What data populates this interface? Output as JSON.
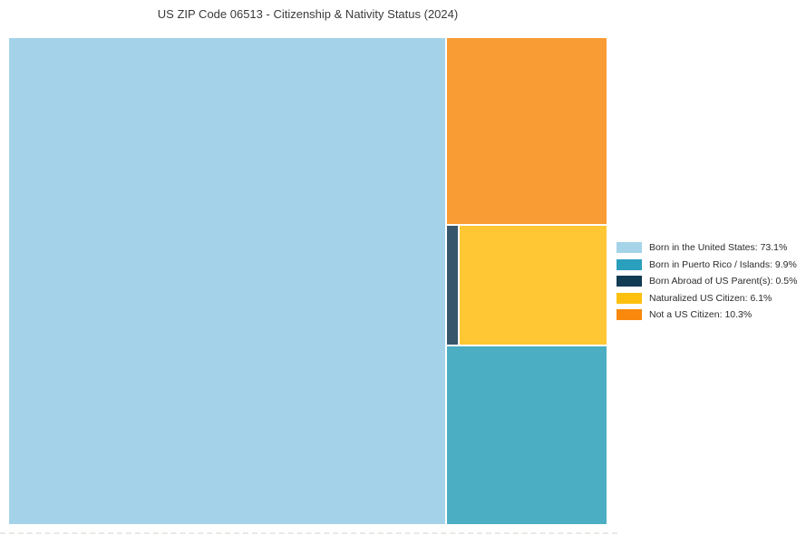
{
  "title": "US ZIP Code 06513 - Citizenship & Nativity Status (2024)",
  "chart_data": {
    "type": "treemap",
    "title": "US ZIP Code 06513 - Citizenship & Nativity Status (2024)",
    "unit": "%",
    "legend_position": "right",
    "items": [
      {
        "key": "born_us",
        "label": "Born in the United States",
        "value": 73.1,
        "fill_color": "#a4d3e9",
        "legend_color": "#a5d4e9"
      },
      {
        "key": "born_pr",
        "label": "Born in Puerto Rico / Islands",
        "value": 9.9,
        "fill_color": "#4baec3",
        "legend_color": "#2b9fbe"
      },
      {
        "key": "born_abroad",
        "label": "Born Abroad of US Parent(s)",
        "value": 0.5,
        "fill_color": "#37566c",
        "legend_color": "#123b54"
      },
      {
        "key": "naturalized",
        "label": "Naturalized US Citizen",
        "value": 6.1,
        "fill_color": "#fec733",
        "legend_color": "#fec00f"
      },
      {
        "key": "not_us_citizen",
        "label": "Not a US Citizen",
        "value": 10.3,
        "fill_color": "#f99c33",
        "legend_color": "#f8890d"
      }
    ],
    "legend_labels": [
      "Born in the United States: 73.1%",
      "Born in Puerto Rico / Islands: 9.9%",
      "Born Abroad of US Parent(s): 0.5%",
      "Naturalized US Citizen: 6.1%",
      "Not a US Citizen: 10.3%"
    ]
  }
}
